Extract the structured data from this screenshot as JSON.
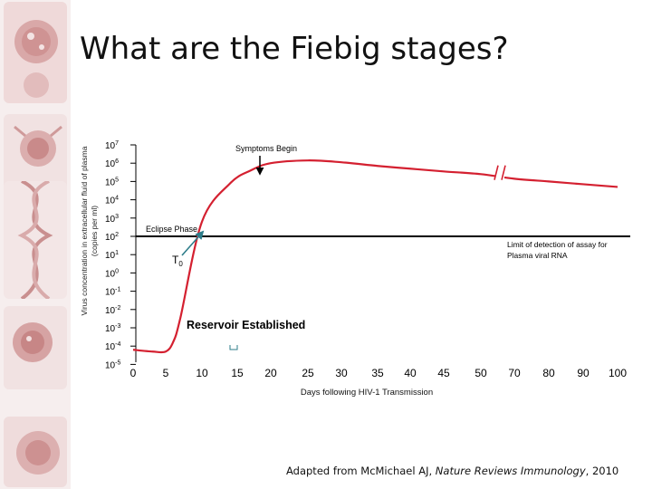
{
  "title": "What are the Fiebig stages?",
  "credit": {
    "prefix": "Adapted from McMichael AJ, ",
    "journal": "Nature Reviews Immunology",
    "suffix": ", 2010"
  },
  "chart_data": {
    "type": "line",
    "ylabel_line1": "Virus concentration in extracellular fluid of plasma",
    "ylabel_line2": "(copies per ml)",
    "xlabel": "Days following HIV-1 Transmission",
    "y_scale": "log",
    "y_ticks": [
      {
        "base": "10",
        "exp": "7"
      },
      {
        "base": "10",
        "exp": "6"
      },
      {
        "base": "10",
        "exp": "5"
      },
      {
        "base": "10",
        "exp": "4"
      },
      {
        "base": "10",
        "exp": "3"
      },
      {
        "base": "10",
        "exp": "2"
      },
      {
        "base": "10",
        "exp": "1"
      },
      {
        "base": "10",
        "exp": "0"
      },
      {
        "base": "10",
        "exp": "-1"
      },
      {
        "base": "10",
        "exp": "-2"
      },
      {
        "base": "10",
        "exp": "-3"
      },
      {
        "base": "10",
        "exp": "-4"
      },
      {
        "base": "10",
        "exp": "-5"
      }
    ],
    "x_ticks": [
      "0",
      "5",
      "10",
      "15",
      "20",
      "25",
      "30",
      "35",
      "40",
      "45",
      "50",
      "70",
      "80",
      "90",
      "100"
    ],
    "axis_break_between": [
      "50",
      "70"
    ],
    "detection_limit": 2,
    "series": [
      {
        "x": [
          0,
          3,
          5,
          6,
          7,
          10,
          14,
          17,
          20,
          25,
          30,
          35,
          40,
          45,
          50,
          70,
          80,
          90,
          100
        ],
        "y": [
          -4.2,
          -4.3,
          -4.3,
          -3.8,
          -2.5,
          2.8,
          4.9,
          5.6,
          6.0,
          6.15,
          6.05,
          5.85,
          5.7,
          5.55,
          5.4,
          5.15,
          5.0,
          4.85,
          4.7
        ]
      }
    ],
    "annotations": {
      "symptoms": "Symptoms Begin",
      "eclipse": "Eclipse Phase",
      "t0_base": "T",
      "t0_sub": "0",
      "limit_line1": "Limit of detection of assay for",
      "limit_line2": "Plasma viral RNA",
      "reservoir": "Reservoir Established"
    },
    "colors": {
      "curve": "#d42030",
      "arrow": "#2e7d8a",
      "axis": "#000000"
    }
  }
}
